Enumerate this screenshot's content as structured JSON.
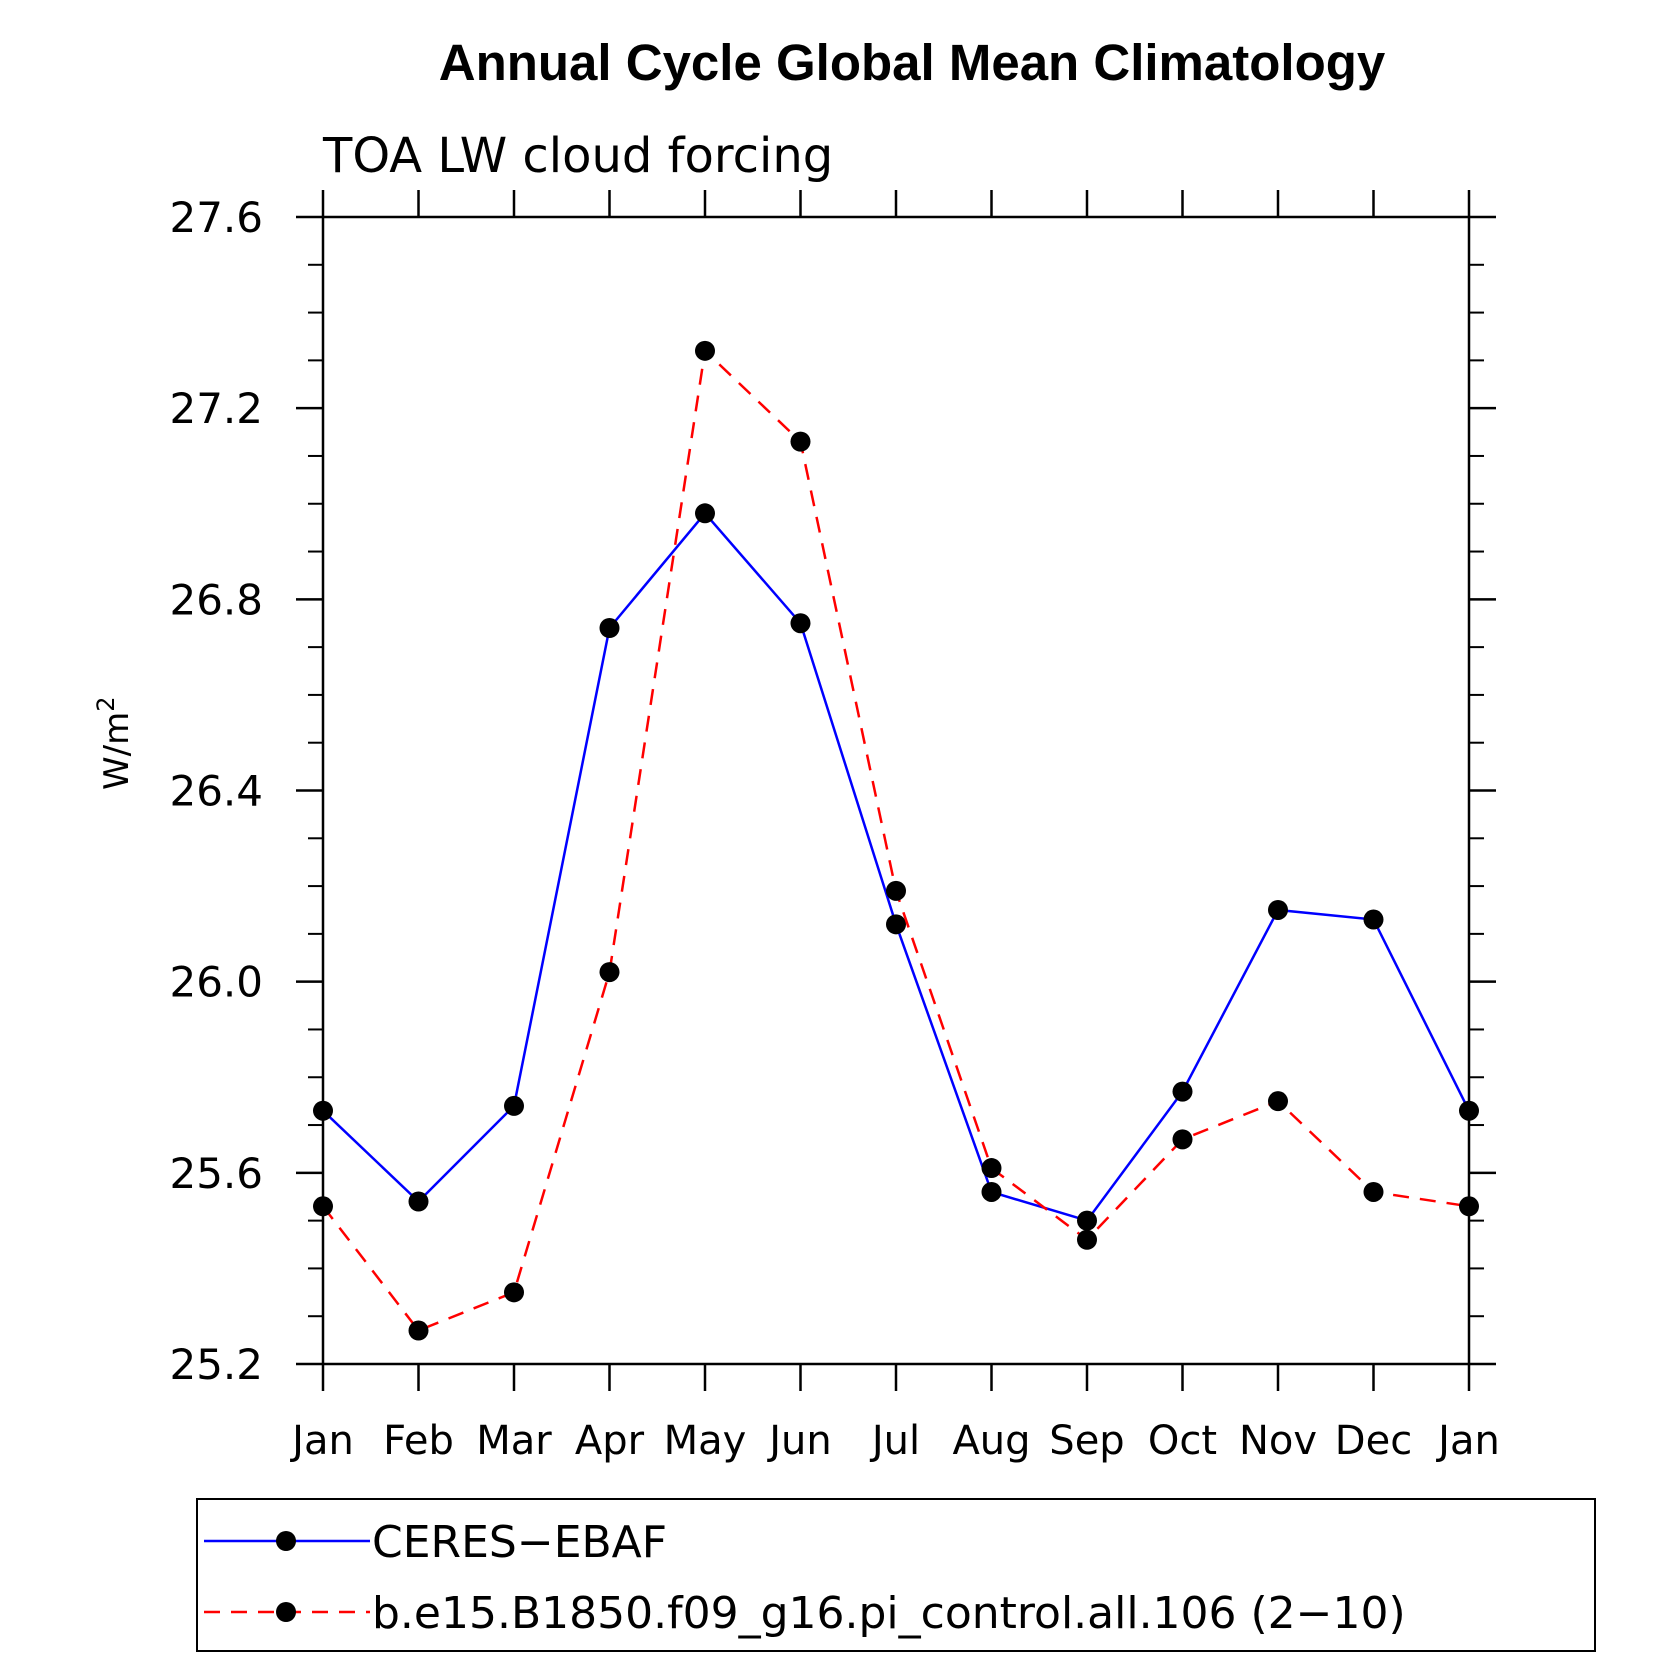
{
  "chart_data": {
    "type": "line",
    "title": "Annual Cycle Global Mean Climatology",
    "subtitle": "TOA LW cloud forcing",
    "xlabel": "",
    "ylabel": "W/m",
    "ylabel_superscript": "2",
    "categories": [
      "Jan",
      "Feb",
      "Mar",
      "Apr",
      "May",
      "Jun",
      "Jul",
      "Aug",
      "Sep",
      "Oct",
      "Nov",
      "Dec",
      "Jan"
    ],
    "ylim": [
      25.2,
      27.6
    ],
    "yticks": [
      "25.2",
      "25.6",
      "26.0",
      "26.4",
      "26.8",
      "27.2",
      "27.6"
    ],
    "yminor_step": 0.1,
    "series": [
      {
        "name": "CERES−EBAF",
        "color": "#0000ff",
        "dash": "solid",
        "marker": "dot",
        "values": [
          25.73,
          25.54,
          25.74,
          26.74,
          26.98,
          26.75,
          26.12,
          25.56,
          25.5,
          25.77,
          26.15,
          26.13,
          25.73
        ]
      },
      {
        "name": "b.e15.B1850.f09_g16.pi_control.all.106 (2−10)",
        "color": "#ff0000",
        "dash": "dashed",
        "marker": "dot",
        "values": [
          25.53,
          25.27,
          25.35,
          26.02,
          27.32,
          27.13,
          26.19,
          25.61,
          25.46,
          25.67,
          25.75,
          25.56,
          25.53
        ]
      }
    ],
    "legend": {
      "placement": "bottom"
    }
  }
}
